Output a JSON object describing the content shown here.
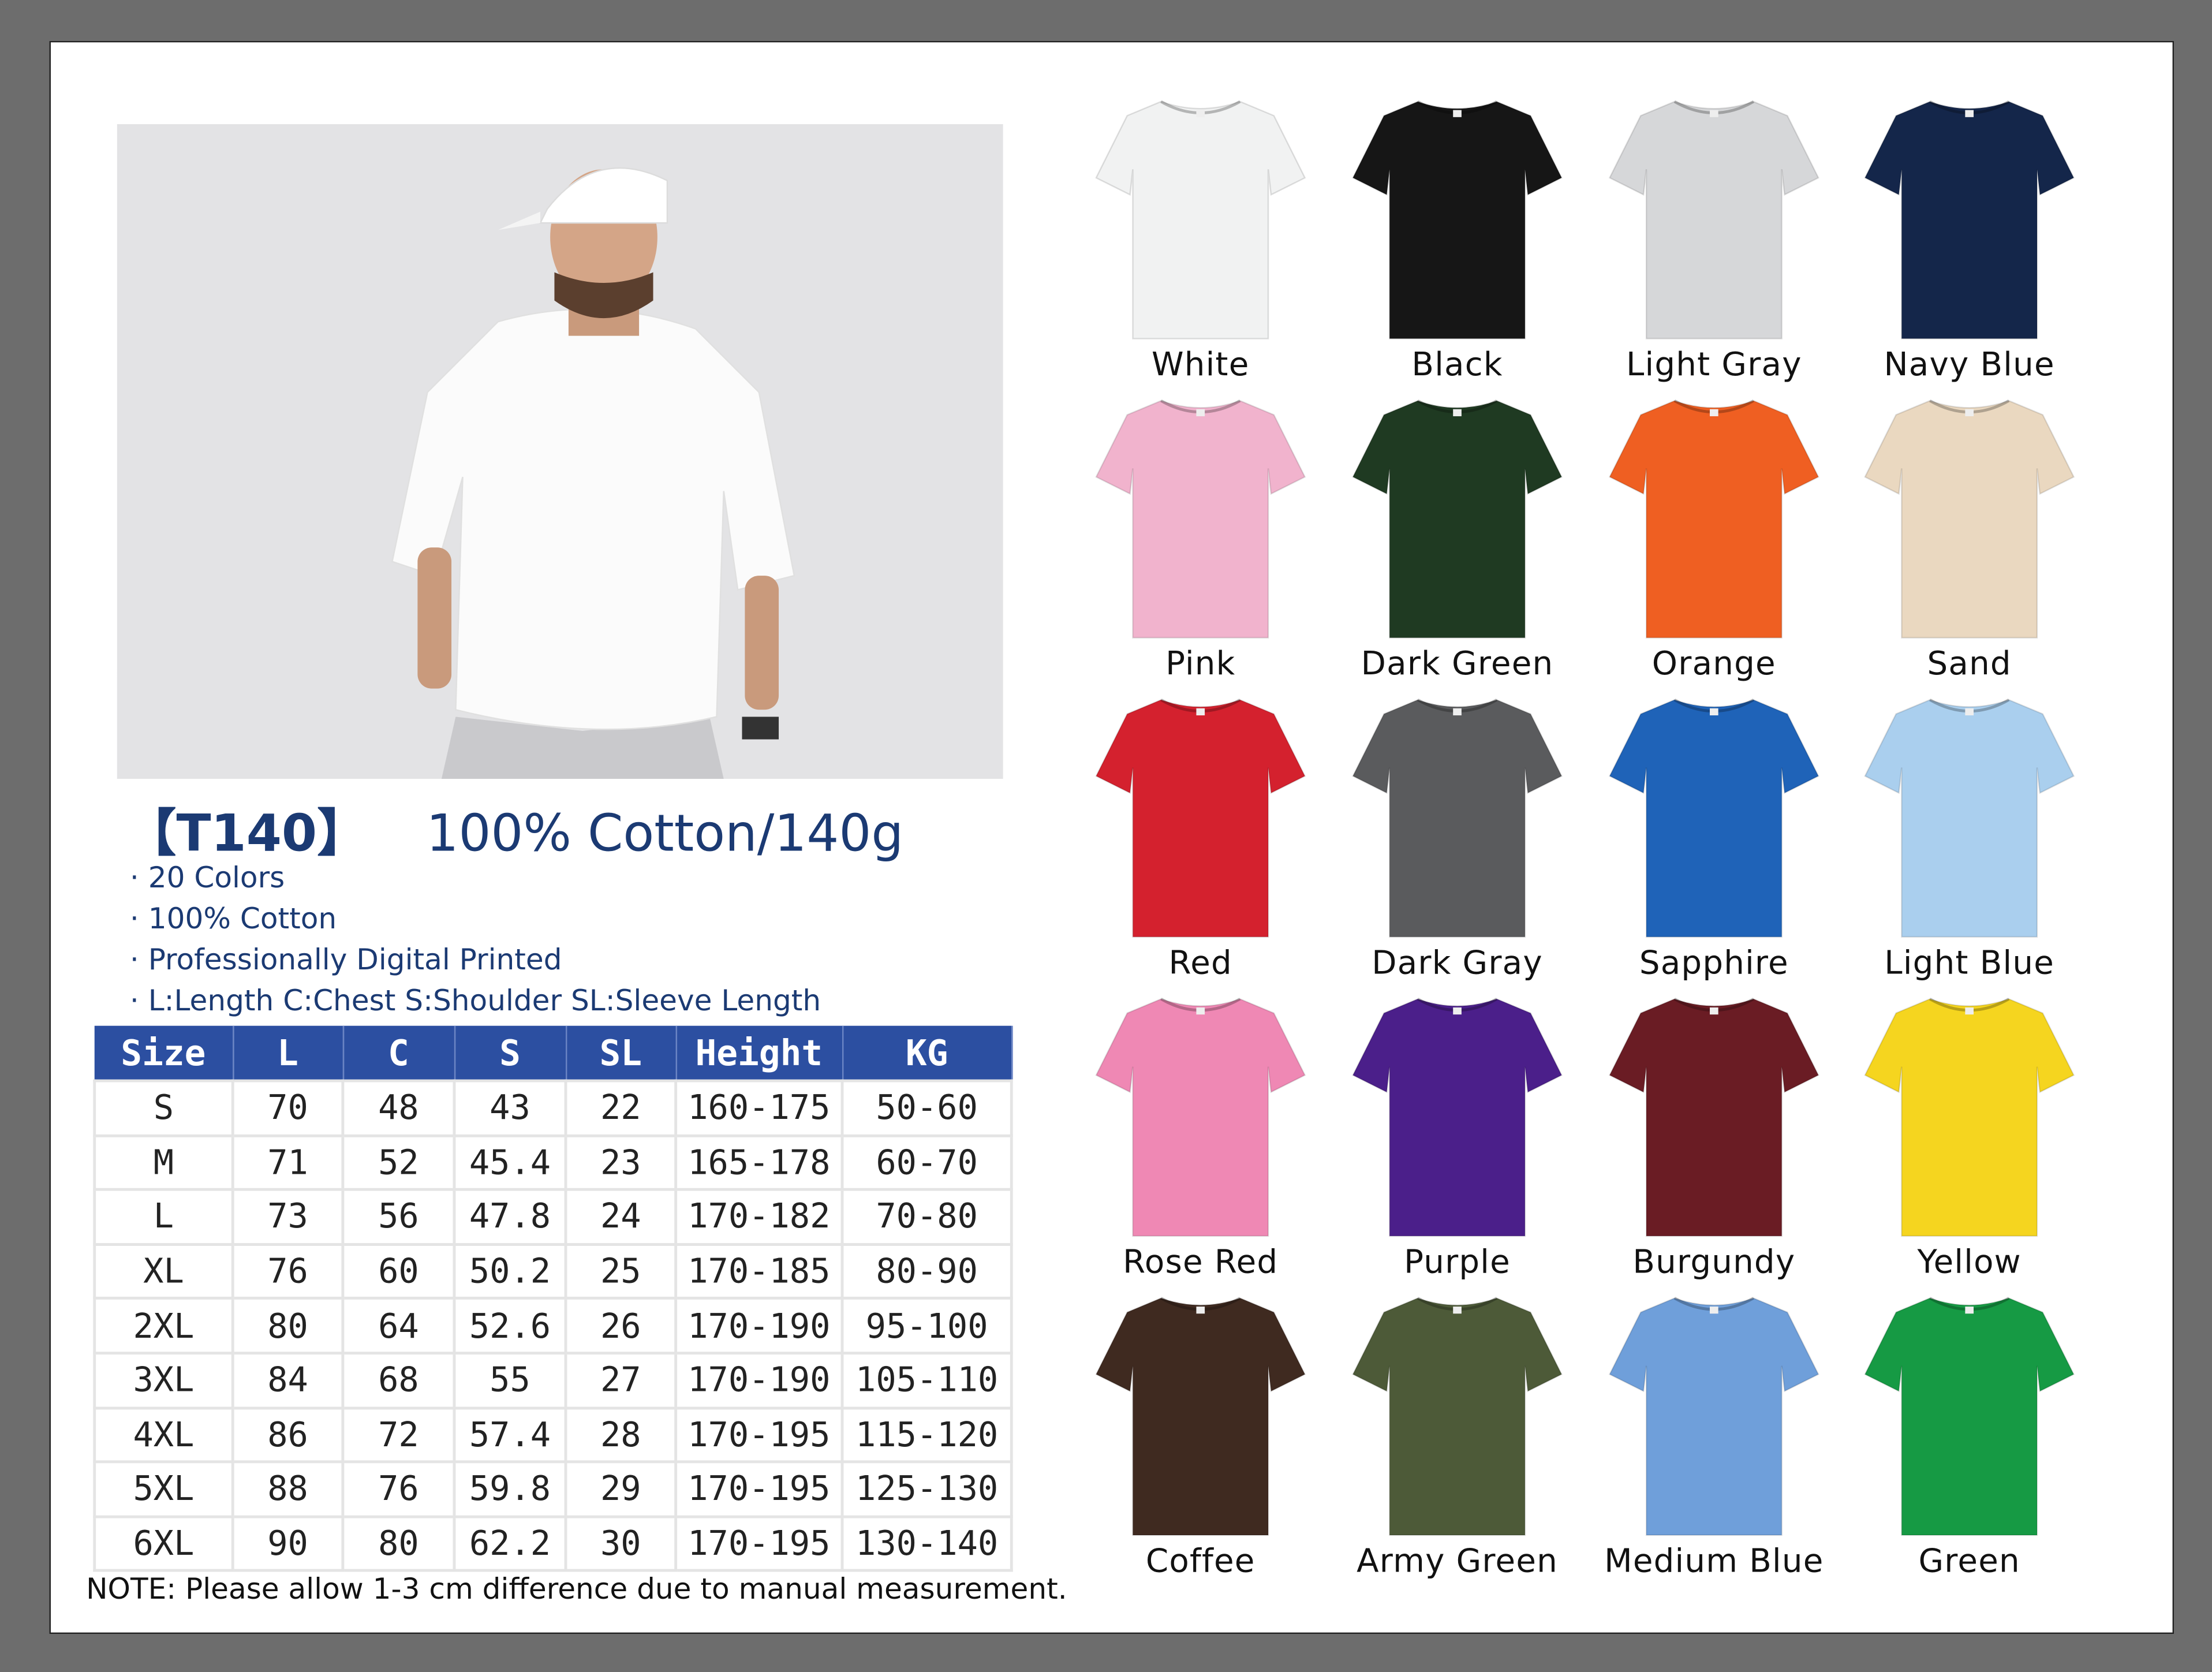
{
  "product": {
    "code": "【T140】",
    "headline": "100% Cotton/140g",
    "bullets": [
      "· 20 Colors",
      "· 100% Cotton",
      "· Professionally Digital Printed",
      "· L:Length C:Chest S:Shoulder SL:Sleeve Length"
    ]
  },
  "size_table": {
    "headers": [
      "Size",
      "L",
      "C",
      "S",
      "SL",
      "Height",
      "KG"
    ],
    "rows": [
      [
        "S",
        "70",
        "48",
        "43",
        "22",
        "160-175",
        "50-60"
      ],
      [
        "M",
        "71",
        "52",
        "45.4",
        "23",
        "165-178",
        "60-70"
      ],
      [
        "L",
        "73",
        "56",
        "47.8",
        "24",
        "170-182",
        "70-80"
      ],
      [
        "XL",
        "76",
        "60",
        "50.2",
        "25",
        "170-185",
        "80-90"
      ],
      [
        "2XL",
        "80",
        "64",
        "52.6",
        "26",
        "170-190",
        "95-100"
      ],
      [
        "3XL",
        "84",
        "68",
        "55",
        "27",
        "170-190",
        "105-110"
      ],
      [
        "4XL",
        "86",
        "72",
        "57.4",
        "28",
        "170-195",
        "115-120"
      ],
      [
        "5XL",
        "88",
        "76",
        "59.8",
        "29",
        "170-195",
        "125-130"
      ],
      [
        "6XL",
        "90",
        "80",
        "62.2",
        "30",
        "170-195",
        "130-140"
      ]
    ],
    "header_color": "#2c4fa1"
  },
  "note": "NOTE:  Please allow 1-3 cm difference due to manual measurement.",
  "colors": [
    {
      "name": "White",
      "hex": "#f1f2f2"
    },
    {
      "name": "Black",
      "hex": "#161616"
    },
    {
      "name": "Light Gray",
      "hex": "#d6d7d9"
    },
    {
      "name": "Navy Blue",
      "hex": "#14264a"
    },
    {
      "name": "Pink",
      "hex": "#f1b3cd"
    },
    {
      "name": "Dark Green",
      "hex": "#1f3a22"
    },
    {
      "name": "Orange",
      "hex": "#ef5f22"
    },
    {
      "name": "Sand",
      "hex": "#ead8c0"
    },
    {
      "name": "Red",
      "hex": "#d4212e"
    },
    {
      "name": "Dark Gray",
      "hex": "#5a5b5d"
    },
    {
      "name": "Sapphire",
      "hex": "#1f63b8"
    },
    {
      "name": "Light Blue",
      "hex": "#aacfee"
    },
    {
      "name": "Rose Red",
      "hex": "#ef88b4"
    },
    {
      "name": "Purple",
      "hex": "#4b1f8a"
    },
    {
      "name": "Burgundy",
      "hex": "#6a1c24"
    },
    {
      "name": "Yellow",
      "hex": "#f5d51f"
    },
    {
      "name": "Coffee",
      "hex": "#3f2a20"
    },
    {
      "name": "Army Green",
      "hex": "#4d5a38"
    },
    {
      "name": "Medium Blue",
      "hex": "#6f9fda"
    },
    {
      "name": "Green",
      "hex": "#169a44"
    }
  ]
}
